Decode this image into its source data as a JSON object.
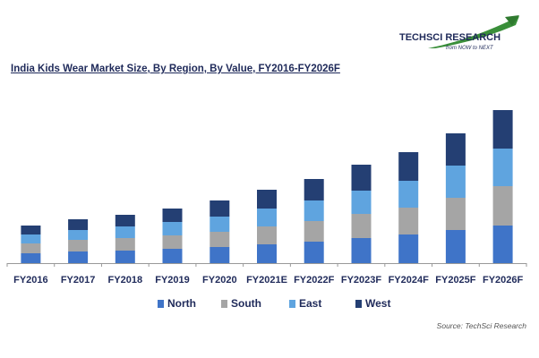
{
  "logo": {
    "name": "TECHSCI RESEARCH",
    "tagline": "from NOW to NEXT"
  },
  "source": "Source: TechSci Research",
  "colors": {
    "North": "#3f74c8",
    "South": "#a5a5a5",
    "East": "#5fa4df",
    "West": "#243f73",
    "axis": "#999999",
    "text": "#1f2a5a"
  },
  "chart_data": {
    "type": "bar",
    "stacked": true,
    "title": "India Kids Wear Market Size, By Region, By Value, FY2016-FY2026F",
    "categories": [
      "FY2016",
      "FY2017",
      "FY2018",
      "FY2019",
      "FY2020",
      "FY2021E",
      "FY2022F",
      "FY2023F",
      "FY2024F",
      "FY2025F",
      "FY2026F"
    ],
    "series": [
      {
        "name": "North",
        "values": [
          11,
          13,
          14,
          16,
          18,
          21,
          24,
          28,
          32,
          37,
          42
        ]
      },
      {
        "name": "South",
        "values": [
          11,
          13,
          14,
          15,
          17,
          20,
          23,
          27,
          30,
          36,
          44
        ]
      },
      {
        "name": "East",
        "values": [
          10,
          11,
          13,
          15,
          17,
          20,
          23,
          26,
          30,
          36,
          42
        ]
      },
      {
        "name": "West",
        "values": [
          10,
          12,
          13,
          15,
          18,
          21,
          24,
          29,
          32,
          36,
          43
        ]
      }
    ],
    "ylim": [
      0,
      180
    ],
    "y_axis_visible": false,
    "grid": false,
    "legend_position": "bottom"
  }
}
